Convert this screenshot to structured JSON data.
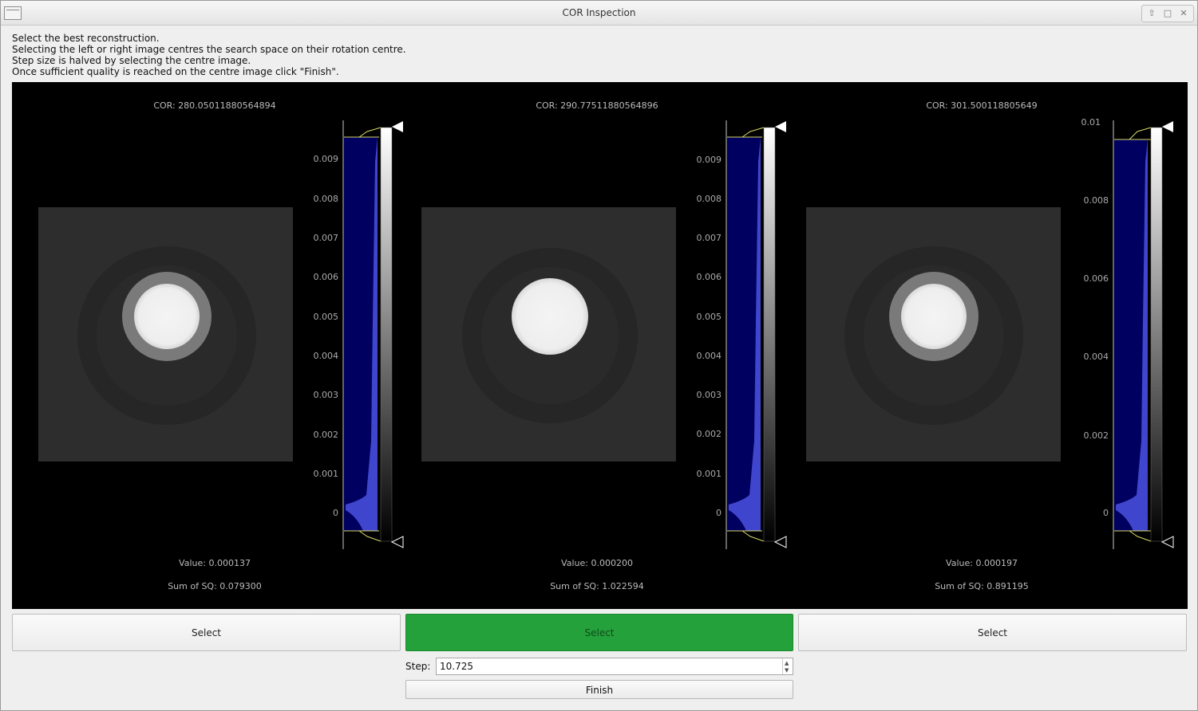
{
  "window": {
    "title": "COR Inspection"
  },
  "instructions": [
    "Select the best reconstruction.",
    "Selecting the left or right image centres the search space on their rotation centre.",
    "Step size is halved by selecting the centre image.",
    "Once sufficient quality is reached on the centre image click \"Finish\"."
  ],
  "images": [
    {
      "cor_label": "COR: 280.05011880564894",
      "value_label": "Value: 0.000137",
      "sum_label": "Sum of SQ: 0.079300",
      "ticks": [
        "0",
        "0.001",
        "0.002",
        "0.003",
        "0.004",
        "0.005",
        "0.006",
        "0.007",
        "0.008",
        "0.009"
      ],
      "select_label": "Select"
    },
    {
      "cor_label": "COR: 290.77511880564896",
      "value_label": "Value: 0.000200",
      "sum_label": "Sum of SQ: 1.022594",
      "ticks": [
        "0",
        "0.001",
        "0.002",
        "0.003",
        "0.004",
        "0.005",
        "0.006",
        "0.007",
        "0.008",
        "0.009"
      ],
      "select_label": "Select"
    },
    {
      "cor_label": "COR: 301.500118805649",
      "value_label": "Value: 0.000197",
      "sum_label": "Sum of SQ: 0.891195",
      "ticks": [
        "0",
        "0.002",
        "0.004",
        "0.006",
        "0.008",
        "0.01"
      ],
      "select_label": "Select"
    }
  ],
  "step": {
    "label": "Step:",
    "value": "10.725"
  },
  "finish_label": "Finish",
  "colors": {
    "selected_button": "#24a13a",
    "histogram_fill": "#000060",
    "histogram_peak": "#4a52e0",
    "region_line": "#d8d86a"
  }
}
